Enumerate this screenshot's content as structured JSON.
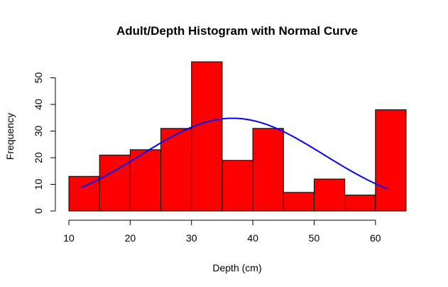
{
  "chart_data": {
    "type": "bar",
    "subtype": "histogram",
    "title": "Adult/Depth Histogram with Normal Curve",
    "xlabel": "Depth (cm)",
    "ylabel": "Frequency",
    "bin_edges": [
      10,
      15,
      20,
      25,
      30,
      35,
      40,
      45,
      50,
      55,
      60,
      65
    ],
    "values": [
      13,
      21,
      23,
      31,
      56,
      19,
      31,
      7,
      12,
      6,
      38
    ],
    "xticks": [
      10,
      20,
      30,
      40,
      50,
      60
    ],
    "yticks": [
      0,
      10,
      20,
      30,
      40,
      50
    ],
    "xlim": [
      10,
      65
    ],
    "ylim": [
      0,
      56
    ],
    "grid": false,
    "bar_color": "#ff0000",
    "bar_edge_color": "#000000",
    "curve": {
      "type": "normal",
      "color": "#0000ff",
      "mean": 36.7,
      "sd": 14.9,
      "scale": 1300,
      "x_range": [
        12,
        62
      ]
    }
  }
}
